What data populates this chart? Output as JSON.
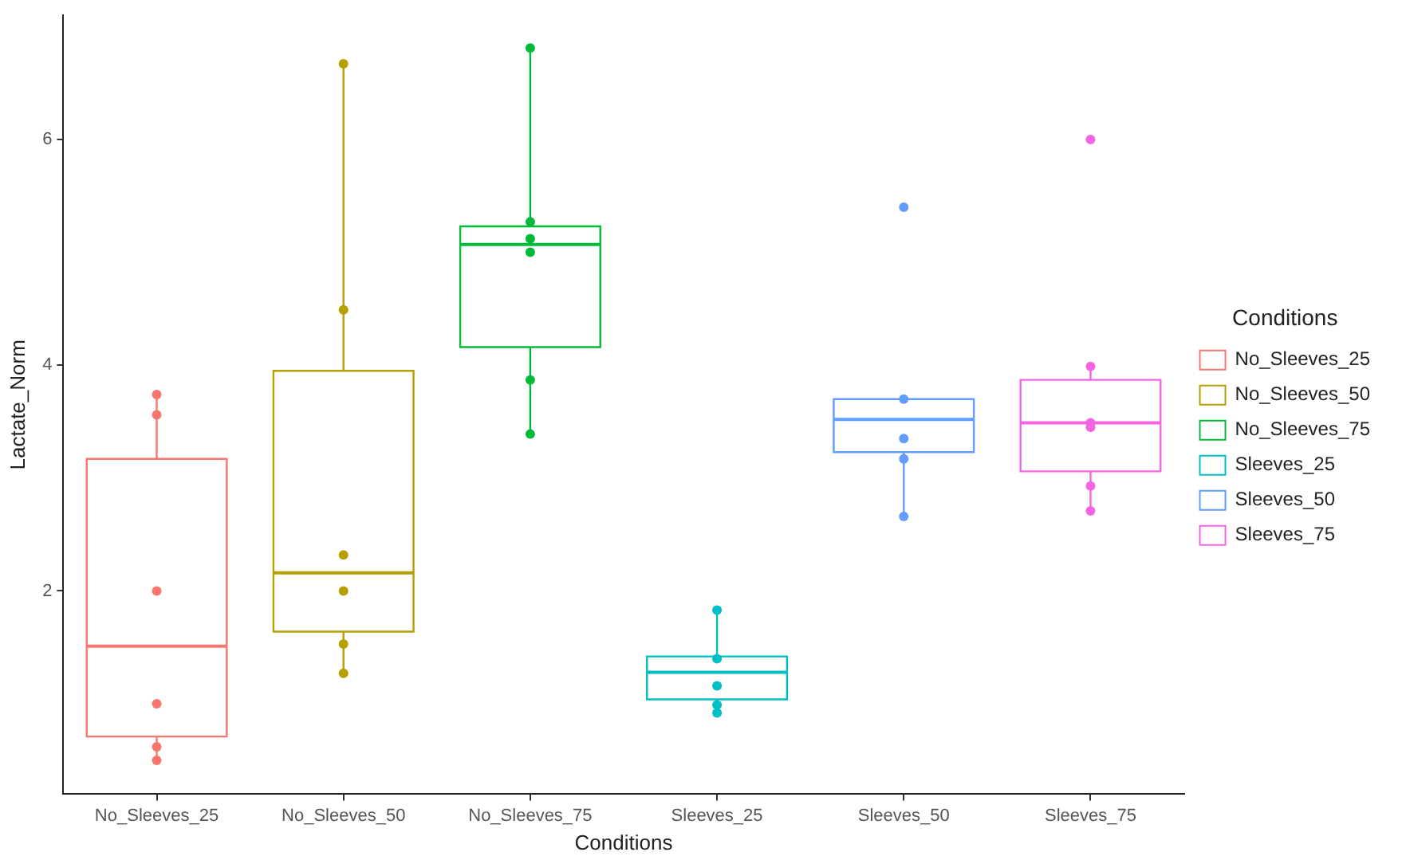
{
  "chart_data": {
    "type": "box",
    "xlabel": "Conditions",
    "ylabel": "Lactate_Norm",
    "legend_title": "Conditions",
    "legend": "right",
    "grid": false,
    "categories": [
      "No_Sleeves_25",
      "No_Sleeves_50",
      "No_Sleeves_75",
      "Sleeves_25",
      "Sleeves_50",
      "Sleeves_75"
    ],
    "ylim": [
      0.2,
      7.1
    ],
    "yticks": [
      2,
      4,
      6
    ],
    "series": [
      {
        "type": "box",
        "name": "No_Sleeves_25",
        "color": "#f8766d",
        "boxes": [
          {
            "low": 0.5,
            "q1": 0.71,
            "median": 1.51,
            "q3": 3.17,
            "high": 3.74
          },
          null,
          null,
          null,
          null,
          null
        ]
      },
      {
        "type": "box",
        "name": "No_Sleeves_50",
        "color": "#b79f00",
        "boxes": [
          null,
          {
            "low": 1.27,
            "q1": 1.64,
            "median": 2.16,
            "q3": 3.95,
            "high": 6.67
          },
          null,
          null,
          null,
          null
        ]
      },
      {
        "type": "box",
        "name": "No_Sleeves_75",
        "color": "#00ba38",
        "boxes": [
          null,
          null,
          {
            "low": 3.39,
            "q1": 4.16,
            "median": 5.07,
            "q3": 5.23,
            "high": 6.81
          },
          null,
          null,
          null
        ]
      },
      {
        "type": "box",
        "name": "Sleeves_25",
        "color": "#00bfc4",
        "boxes": [
          null,
          null,
          null,
          {
            "low": 0.92,
            "q1": 1.04,
            "median": 1.28,
            "q3": 1.42,
            "high": 1.83
          },
          null,
          null
        ]
      },
      {
        "type": "box",
        "name": "Sleeves_50",
        "color": "#619cff",
        "boxes": [
          null,
          null,
          null,
          null,
          {
            "low": 2.66,
            "q1": 3.23,
            "median": 3.52,
            "q3": 3.7,
            "high": 3.7,
            "outliers": [
              5.4
            ]
          },
          null
        ]
      },
      {
        "type": "box",
        "name": "Sleeves_75",
        "color": "#f564e3",
        "boxes": [
          null,
          null,
          null,
          null,
          null,
          {
            "low": 2.71,
            "q1": 3.06,
            "median": 3.49,
            "q3": 3.87,
            "high": 3.99,
            "outliers": [
              6.0
            ]
          }
        ]
      },
      {
        "type": "scatter",
        "x": [
          "No_Sleeves_25",
          "No_Sleeves_25",
          "No_Sleeves_25",
          "No_Sleeves_25",
          "No_Sleeves_25",
          "No_Sleeves_25",
          "No_Sleeves_50",
          "No_Sleeves_50",
          "No_Sleeves_50",
          "No_Sleeves_50",
          "No_Sleeves_50",
          "No_Sleeves_50",
          "No_Sleeves_75",
          "No_Sleeves_75",
          "No_Sleeves_75",
          "No_Sleeves_75",
          "No_Sleeves_75",
          "No_Sleeves_75",
          "Sleeves_25",
          "Sleeves_25",
          "Sleeves_25",
          "Sleeves_25",
          "Sleeves_25",
          "Sleeves_25",
          "Sleeves_50",
          "Sleeves_50",
          "Sleeves_50",
          "Sleeves_50",
          "Sleeves_50",
          "Sleeves_75",
          "Sleeves_75",
          "Sleeves_75",
          "Sleeves_75",
          "Sleeves_75"
        ],
        "values": [
          3.74,
          3.56,
          2.0,
          1.0,
          0.62,
          0.5,
          6.67,
          4.49,
          2.32,
          2.0,
          1.53,
          1.27,
          6.81,
          5.27,
          5.12,
          5.0,
          3.87,
          3.39,
          1.83,
          null,
          1.4,
          1.16,
          0.99,
          0.92,
          3.7,
          null,
          3.35,
          3.17,
          2.66,
          3.99,
          3.49,
          3.45,
          2.93,
          2.71
        ],
        "colors": [
          "#f8766d",
          "#f8766d",
          "#f8766d",
          "#f8766d",
          "#f8766d",
          "#f8766d",
          "#b79f00",
          "#b79f00",
          "#b79f00",
          "#b79f00",
          "#b79f00",
          "#b79f00",
          "#00ba38",
          "#00ba38",
          "#00ba38",
          "#00ba38",
          "#00ba38",
          "#00ba38",
          "#00bfc4",
          "#00bfc4",
          "#00bfc4",
          "#00bfc4",
          "#00bfc4",
          "#00bfc4",
          "#619cff",
          "#619cff",
          "#619cff",
          "#619cff",
          "#619cff",
          "#f564e3",
          "#f564e3",
          "#f564e3",
          "#f564e3",
          "#f564e3"
        ]
      }
    ]
  }
}
